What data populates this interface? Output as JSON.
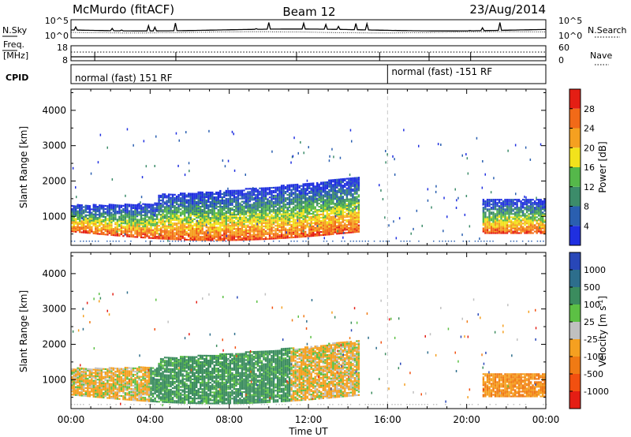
{
  "header": {
    "station": "McMurdo (fitACF)",
    "beam": "Beam 12",
    "date": "23/Aug/2014"
  },
  "top_panel": {
    "left_label": "N.Sky",
    "right_label": "N.Search",
    "left_ticks": [
      "10^5",
      "10^0"
    ],
    "right_ticks": [
      "10^5",
      "10^0"
    ]
  },
  "freq_panel": {
    "left_label": "Freq.",
    "left_unit": "[MHz]",
    "right_label": "Nave",
    "left_ticks": [
      "18",
      "8"
    ],
    "right_ticks": [
      "60",
      "0"
    ]
  },
  "cpid_panel": {
    "label": "CPID",
    "modes": [
      {
        "text": "normal (fast) 151 RF",
        "start_hour": 0.0
      },
      {
        "text": "normal (fast) -151 RF",
        "start_hour": 16.0
      }
    ]
  },
  "chart_data": [
    {
      "type": "heatmap",
      "quantity": "Power",
      "ylabel": "Slant Range [km]",
      "xlabel": "",
      "x_range_hours": [
        0,
        24
      ],
      "ylim": [
        180,
        4600
      ],
      "y_ticks": [
        "1000",
        "2000",
        "3000",
        "4000"
      ],
      "colorbar_label": "Power [dB]",
      "colorbar_ticks": [
        "4",
        "8",
        "12",
        "16",
        "20",
        "24",
        "28"
      ],
      "colorbar_colors": [
        "#1f2fe0",
        "#2a5fb0",
        "#3c8c6a",
        "#55b84a",
        "#f2e21c",
        "#f5a020",
        "#f26a18",
        "#e41e14"
      ],
      "echo_bands": [
        {
          "start_hour": 0.0,
          "end_hour": 14.5,
          "range_km": [
            600,
            1600
          ]
        },
        {
          "start_hour": 20.8,
          "end_hour": 24.0,
          "range_km": [
            550,
            1500
          ]
        }
      ]
    },
    {
      "type": "heatmap",
      "quantity": "Velocity",
      "ylabel": "Slant Range [km]",
      "xlabel": "Time UT",
      "x_range_hours": [
        0,
        24
      ],
      "x_ticks": [
        "00:00",
        "04:00",
        "08:00",
        "12:00",
        "16:00",
        "20:00",
        "00:00"
      ],
      "ylim": [
        180,
        4600
      ],
      "y_ticks": [
        "1000",
        "2000",
        "3000",
        "4000"
      ],
      "colorbar_label": "Velocity [m s",
      "colorbar_label_sup": "-1",
      "colorbar_label_end": "]",
      "colorbar_ticks": [
        "1000",
        "500",
        "100",
        "25",
        "-25",
        "-100",
        "-500",
        "-1000"
      ],
      "colorbar_colors": [
        "#2847b8",
        "#2d6e8c",
        "#3b8c5e",
        "#5cc044",
        "#c0c0c0",
        "#f5a020",
        "#f07a14",
        "#f25010",
        "#e41e14"
      ],
      "echo_bands": [
        {
          "start_hour": 0.0,
          "end_hour": 14.5,
          "range_km": [
            600,
            1600
          ]
        },
        {
          "start_hour": 20.8,
          "end_hour": 24.0,
          "range_km": [
            550,
            1200
          ]
        }
      ]
    }
  ],
  "colors": {
    "gap_line": "#c8c8c8"
  }
}
